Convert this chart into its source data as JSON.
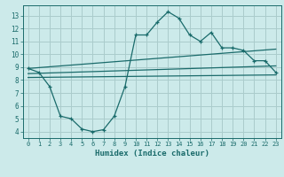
{
  "xlabel": "Humidex (Indice chaleur)",
  "bg_color": "#cceaea",
  "grid_color": "#aacccc",
  "line_color": "#1a6b6b",
  "xlim": [
    -0.5,
    23.5
  ],
  "ylim": [
    3.5,
    13.8
  ],
  "xticks": [
    0,
    1,
    2,
    3,
    4,
    5,
    6,
    7,
    8,
    9,
    10,
    11,
    12,
    13,
    14,
    15,
    16,
    17,
    18,
    19,
    20,
    21,
    22,
    23
  ],
  "yticks": [
    4,
    5,
    6,
    7,
    8,
    9,
    10,
    11,
    12,
    13
  ],
  "curve1_x": [
    0,
    1,
    2,
    3,
    4,
    5,
    6,
    7,
    8,
    9,
    10,
    11,
    12,
    13,
    14,
    15,
    16,
    17,
    18,
    19,
    20,
    21,
    22,
    23
  ],
  "curve1_y": [
    8.9,
    8.6,
    7.5,
    5.2,
    5.0,
    4.2,
    4.0,
    4.15,
    5.2,
    7.5,
    11.5,
    11.5,
    12.5,
    13.3,
    12.8,
    11.5,
    11.0,
    11.7,
    10.5,
    10.5,
    10.3,
    9.5,
    9.5,
    8.6
  ],
  "line2_x": [
    0,
    23
  ],
  "line2_y": [
    8.9,
    10.4
  ],
  "line3_x": [
    0,
    23
  ],
  "line3_y": [
    8.5,
    9.1
  ],
  "line4_x": [
    0,
    23
  ],
  "line4_y": [
    8.2,
    8.4
  ]
}
